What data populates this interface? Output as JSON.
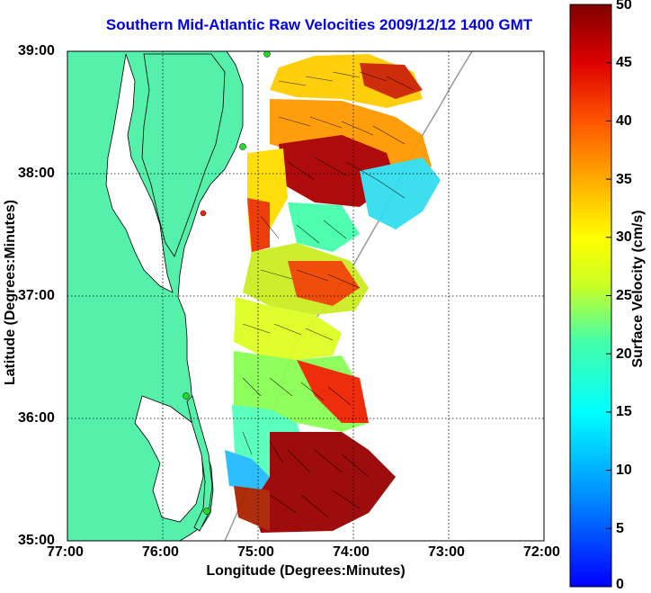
{
  "figure": {
    "title": "Southern Mid-Atlantic Raw Velocities 2009/12/12 1400 GMT",
    "x_axis_label": "Longitude (Degrees:Minutes)",
    "y_axis_label": "Latitude (Degrees:Minutes)",
    "x_ticks": [
      "77:00",
      "76:00",
      "75:00",
      "74:00",
      "73:00",
      "72:00"
    ],
    "y_ticks": [
      "39:00",
      "38:00",
      "37:00",
      "36:00",
      "35:00"
    ],
    "colorbar": {
      "label": "Surface Velocity (cm/s)",
      "ticks": [
        "50",
        "45",
        "40",
        "35",
        "30",
        "25",
        "20",
        "15",
        "10",
        "5",
        "0"
      ],
      "range": [
        0,
        50
      ]
    },
    "extent": {
      "lon_west": -77,
      "lon_east": -72,
      "lat_south": 35,
      "lat_north": 39
    },
    "colors": {
      "land": "#55f0aa",
      "title": "#0000ee",
      "coast": "#000000",
      "station_green": "#22dd22",
      "station_red": "#ff2200"
    }
  }
}
